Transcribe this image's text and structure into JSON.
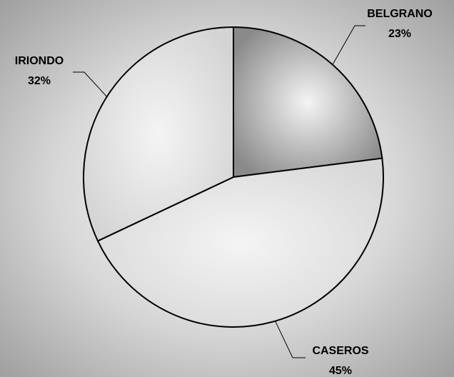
{
  "chart_data": {
    "type": "pie",
    "categories": [
      "BELGRANO",
      "CASEROS",
      "IRIONDO"
    ],
    "values": [
      23,
      45,
      32
    ],
    "value_labels": [
      "23%",
      "45%",
      "32%"
    ],
    "colors": [
      "#8a8a8a",
      "#d8d8d8",
      "#d4d4d4"
    ]
  }
}
